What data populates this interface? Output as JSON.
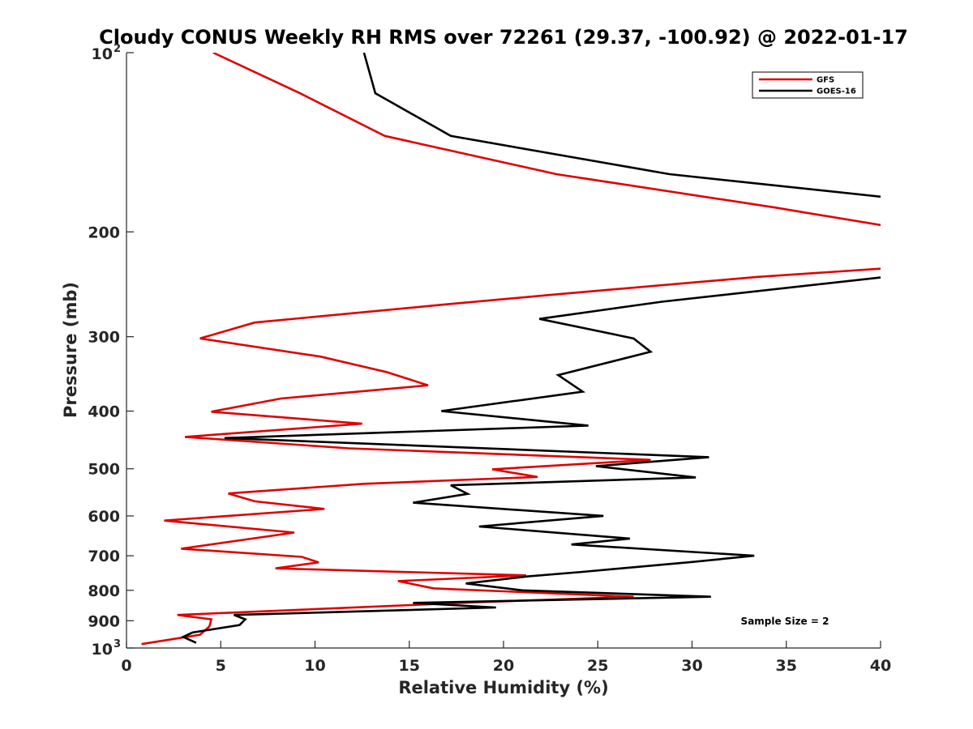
{
  "chart_data": {
    "type": "line",
    "title": "Cloudy CONUS Weekly RH RMS over 72261 (29.37, -100.92) @ 2022-01-17",
    "xlabel": "Relative Humidity (%)",
    "ylabel": "Pressure (mb)",
    "xlim": [
      0,
      40
    ],
    "ylim": [
      100,
      1000
    ],
    "y_scale": "log",
    "y_reversed": true,
    "grid": false,
    "legend_position": "top-right",
    "annotation": "Sample Size = 2",
    "x_ticks": [
      0,
      5,
      10,
      15,
      20,
      25,
      30,
      35,
      40
    ],
    "x_tick_labels": [
      "0",
      "5",
      "10",
      "15",
      "20",
      "25",
      "30",
      "35",
      "40"
    ],
    "y_ticks": [
      {
        "value": 100,
        "base": "10",
        "exp": "2"
      },
      {
        "value": 200,
        "label": "200"
      },
      {
        "value": 300,
        "label": "300"
      },
      {
        "value": 400,
        "label": "400"
      },
      {
        "value": 500,
        "label": "500"
      },
      {
        "value": 600,
        "label": "600"
      },
      {
        "value": 700,
        "label": "700"
      },
      {
        "value": 800,
        "label": "800"
      },
      {
        "value": 900,
        "label": "900"
      },
      {
        "value": 1000,
        "base": "10",
        "exp": "3"
      }
    ],
    "series": [
      {
        "name": "GFS",
        "color": "#e00000",
        "points": [
          [
            4.6,
            100
          ],
          [
            9.2,
            117
          ],
          [
            13.7,
            138
          ],
          [
            22.8,
            160
          ],
          [
            34.4,
            182
          ],
          [
            40.5,
            196
          ],
          [
            40.5,
            230
          ],
          [
            33.5,
            238
          ],
          [
            22.6,
            255
          ],
          [
            16.8,
            265
          ],
          [
            6.8,
            284
          ],
          [
            3.9,
            302
          ],
          [
            10.3,
            324
          ],
          [
            13.8,
            344
          ],
          [
            16.0,
            362
          ],
          [
            8.2,
            381
          ],
          [
            4.5,
            401
          ],
          [
            12.5,
            420
          ],
          [
            3.1,
            442
          ],
          [
            11.8,
            462
          ],
          [
            27.8,
            483
          ],
          [
            19.4,
            501
          ],
          [
            21.8,
            516
          ],
          [
            12.6,
            530
          ],
          [
            5.4,
            550
          ],
          [
            6.8,
            567
          ],
          [
            10.5,
            584
          ],
          [
            2.0,
            611
          ],
          [
            8.9,
            640
          ],
          [
            2.9,
            681
          ],
          [
            9.3,
            703
          ],
          [
            10.2,
            718
          ],
          [
            7.9,
            735
          ],
          [
            21.2,
            755
          ],
          [
            14.4,
            772
          ],
          [
            16.3,
            794
          ],
          [
            26.9,
            820
          ],
          [
            18.5,
            838
          ],
          [
            2.7,
            880
          ],
          [
            4.5,
            895
          ],
          [
            4.4,
            920
          ],
          [
            3.9,
            950
          ],
          [
            0.8,
            985
          ]
        ]
      },
      {
        "name": "GOES-16",
        "color": "#000000",
        "points": [
          [
            12.6,
            100
          ],
          [
            13.2,
            117
          ],
          [
            17.2,
            138
          ],
          [
            28.8,
            160
          ],
          [
            40.3,
            175
          ],
          [
            40.3,
            238
          ],
          [
            28.4,
            262
          ],
          [
            21.9,
            280
          ],
          [
            26.9,
            302
          ],
          [
            27.8,
            318
          ],
          [
            22.9,
            348
          ],
          [
            24.2,
            371
          ],
          [
            16.7,
            400
          ],
          [
            24.5,
            423
          ],
          [
            5.2,
            444
          ],
          [
            30.9,
            478
          ],
          [
            24.9,
            495
          ],
          [
            30.2,
            517
          ],
          [
            17.2,
            533
          ],
          [
            18.1,
            551
          ],
          [
            15.2,
            570
          ],
          [
            25.3,
            600
          ],
          [
            18.7,
            625
          ],
          [
            26.7,
            655
          ],
          [
            23.6,
            670
          ],
          [
            33.3,
            700
          ],
          [
            30.0,
            717
          ],
          [
            24.2,
            745
          ],
          [
            21.3,
            758
          ],
          [
            18.0,
            779
          ],
          [
            21.0,
            800
          ],
          [
            31.0,
            820
          ],
          [
            15.2,
            840
          ],
          [
            19.6,
            855
          ],
          [
            5.7,
            880
          ],
          [
            6.3,
            895
          ],
          [
            6.0,
            915
          ],
          [
            3.5,
            942
          ],
          [
            3.0,
            958
          ],
          [
            3.7,
            980
          ]
        ]
      }
    ]
  }
}
